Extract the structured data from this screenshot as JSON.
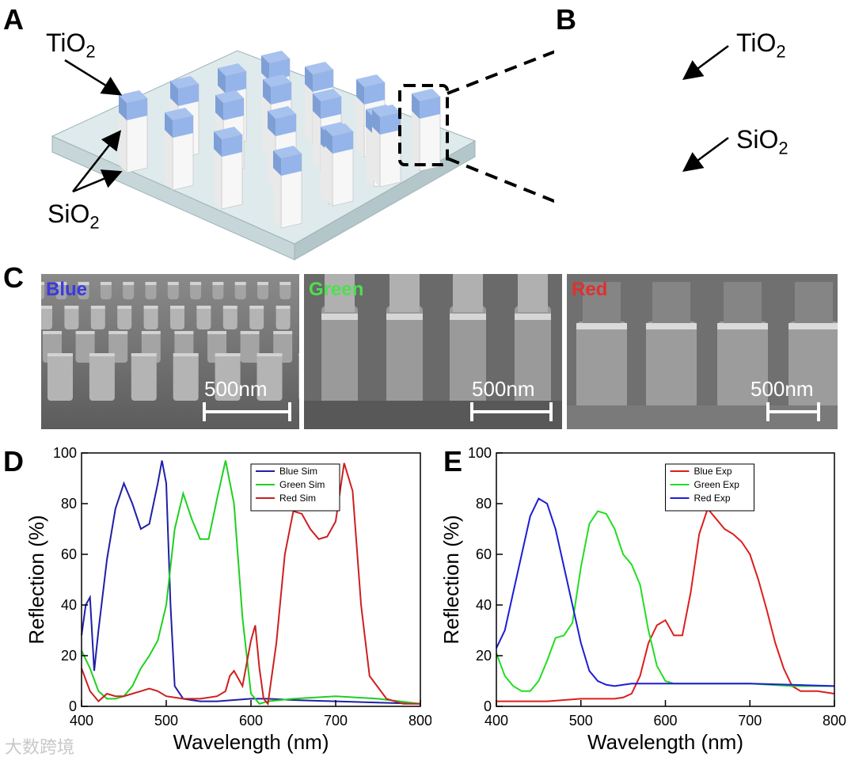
{
  "panels": {
    "a": "A",
    "b": "B",
    "c": "C",
    "d": "D",
    "e": "E"
  },
  "labels": {
    "tio2_base": "TiO",
    "sio2_base": "SiO",
    "sub2": "2"
  },
  "sem": [
    {
      "name": "Blue",
      "color": "#3a3ae0",
      "scale": "500nm"
    },
    {
      "name": "Green",
      "color": "#4de04d",
      "scale": "500nm"
    },
    {
      "name": "Red",
      "color": "#e03030",
      "scale": "500nm"
    }
  ],
  "watermark": "大数跨境",
  "chart_data": [
    {
      "type": "line",
      "title": "",
      "xlabel": "Wavelength (nm)",
      "ylabel": "Reflection (%)",
      "xlim": [
        400,
        800
      ],
      "ylim": [
        0,
        100
      ],
      "xticks": [
        "400",
        "500",
        "600",
        "700",
        "800"
      ],
      "yticks": [
        "0",
        "20",
        "40",
        "60",
        "80",
        "100"
      ],
      "legend_position": "top-right",
      "series": [
        {
          "name": "Blue Sim",
          "color": "#1f1fa8",
          "x": [
            400,
            405,
            410,
            415,
            420,
            430,
            440,
            450,
            460,
            470,
            480,
            490,
            495,
            500,
            505,
            510,
            520,
            540,
            560,
            580,
            600,
            620,
            650,
            700,
            750,
            800
          ],
          "y": [
            28,
            40,
            43,
            14,
            30,
            58,
            78,
            88,
            80,
            70,
            72,
            88,
            97,
            88,
            40,
            8,
            3,
            2,
            2,
            2.5,
            3,
            3,
            2.5,
            2,
            1.5,
            1
          ]
        },
        {
          "name": "Green Sim",
          "color": "#1fd01f",
          "x": [
            400,
            410,
            420,
            430,
            440,
            450,
            460,
            470,
            480,
            490,
            500,
            510,
            520,
            530,
            540,
            550,
            560,
            570,
            580,
            590,
            600,
            610,
            620,
            650,
            700,
            750,
            800
          ],
          "y": [
            22,
            15,
            6,
            3,
            3,
            4,
            8,
            15,
            20,
            26,
            40,
            70,
            84,
            74,
            66,
            66,
            82,
            97,
            80,
            35,
            5,
            1,
            2,
            3,
            4,
            3,
            1
          ]
        },
        {
          "name": "Red Sim",
          "color": "#cc2020",
          "x": [
            400,
            410,
            420,
            430,
            440,
            450,
            460,
            470,
            480,
            490,
            500,
            520,
            540,
            560,
            570,
            575,
            580,
            590,
            600,
            605,
            610,
            615,
            620,
            630,
            640,
            650,
            660,
            670,
            680,
            690,
            700,
            710,
            720,
            730,
            740,
            760,
            780,
            800
          ],
          "y": [
            15,
            6,
            2,
            5,
            4,
            4,
            5,
            6,
            7,
            6,
            4,
            3,
            3,
            4,
            6,
            12,
            14,
            8,
            26,
            32,
            15,
            3,
            1,
            25,
            60,
            77,
            76,
            70,
            66,
            67,
            73,
            96,
            85,
            40,
            12,
            3,
            1,
            1
          ]
        }
      ]
    },
    {
      "type": "line",
      "title": "",
      "xlabel": "Wavelength (nm)",
      "ylabel": "Reflection (%)",
      "xlim": [
        400,
        800
      ],
      "ylim": [
        0,
        100
      ],
      "xticks": [
        "400",
        "500",
        "600",
        "700",
        "800"
      ],
      "yticks": [
        "0",
        "20",
        "40",
        "60",
        "80",
        "100"
      ],
      "legend_position": "top-right",
      "series": [
        {
          "name": "Blue Exp",
          "color": "#dd1e1e",
          "x": [
            400,
            420,
            440,
            460,
            480,
            500,
            520,
            540,
            550,
            560,
            570,
            580,
            590,
            600,
            610,
            620,
            630,
            640,
            650,
            660,
            670,
            680,
            690,
            700,
            710,
            720,
            730,
            740,
            750,
            760,
            780,
            800
          ],
          "y": [
            2,
            2,
            2,
            2,
            2.5,
            3,
            3,
            3,
            3.5,
            5,
            12,
            25,
            32,
            34,
            28,
            28,
            45,
            68,
            78,
            74,
            70,
            68,
            65,
            60,
            50,
            38,
            25,
            15,
            8,
            6,
            6,
            5
          ]
        },
        {
          "name": "Green Exp",
          "color": "#22dd22",
          "x": [
            400,
            410,
            420,
            430,
            440,
            450,
            460,
            470,
            480,
            490,
            500,
            510,
            520,
            530,
            540,
            550,
            560,
            570,
            580,
            590,
            600,
            610,
            620,
            650,
            700,
            750,
            800
          ],
          "y": [
            21,
            12,
            8,
            6,
            6,
            10,
            18,
            27,
            28,
            33,
            55,
            72,
            77,
            76,
            70,
            60,
            56,
            48,
            30,
            16,
            10,
            9,
            9,
            9,
            9,
            8,
            8
          ]
        },
        {
          "name": "Red Exp",
          "color": "#1e1ed4",
          "x": [
            400,
            410,
            420,
            430,
            440,
            450,
            460,
            470,
            480,
            490,
            500,
            510,
            520,
            530,
            540,
            550,
            560,
            580,
            600,
            620,
            650,
            700,
            750,
            800
          ],
          "y": [
            23,
            30,
            45,
            60,
            75,
            82,
            80,
            70,
            55,
            40,
            25,
            14,
            10,
            8.5,
            8,
            8.5,
            9,
            9,
            9,
            9,
            9,
            9,
            8.5,
            8
          ]
        }
      ]
    }
  ]
}
